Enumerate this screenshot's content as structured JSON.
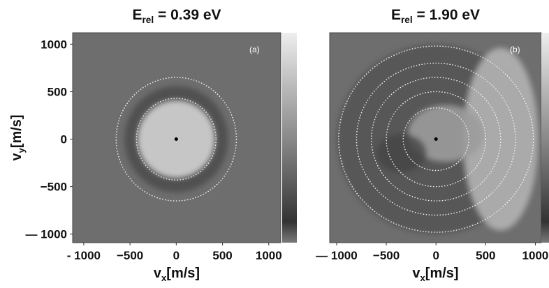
{
  "chart_data": [
    {
      "type": "image",
      "title": {
        "text": "E",
        "sub": "rel",
        "rest": " = 0.39 eV"
      },
      "panel_label": "(a)",
      "xlabel": {
        "text": "v",
        "sub": "x",
        "rest": "[m/s]"
      },
      "ylabel": {
        "text": "v",
        "sub": "y",
        "rest": "[m/s]"
      },
      "xlim": [
        -1120,
        1130
      ],
      "ylim": [
        -1090,
        1120
      ],
      "xticks": [
        {
          "value": -1000,
          "label": "- 1000"
        },
        {
          "value": -500,
          "label": "−500"
        },
        0,
        500,
        1000
      ],
      "yticks": [
        {
          "value": -1000,
          "label": "— 1000"
        },
        {
          "value": -500,
          "label": "−500"
        },
        0,
        500,
        1000
      ],
      "center": [
        0,
        0
      ],
      "circle_radii": [
        430,
        650
      ]
    },
    {
      "type": "image",
      "title": {
        "text": "E",
        "sub": "rel",
        "rest": " = 1.90 eV"
      },
      "panel_label": "(b)",
      "xlabel": {
        "text": "v",
        "sub": "x",
        "rest": "[m/s]"
      },
      "xlim": [
        -1070,
        1060
      ],
      "ylim": [
        -1090,
        1120
      ],
      "xticks": [
        {
          "value": -1000,
          "label": "— 1000"
        },
        {
          "value": -500,
          "label": "−500"
        },
        0,
        500,
        1000
      ],
      "center": [
        0,
        0
      ],
      "circle_radii": [
        330,
        500,
        650,
        800,
        980
      ]
    }
  ]
}
